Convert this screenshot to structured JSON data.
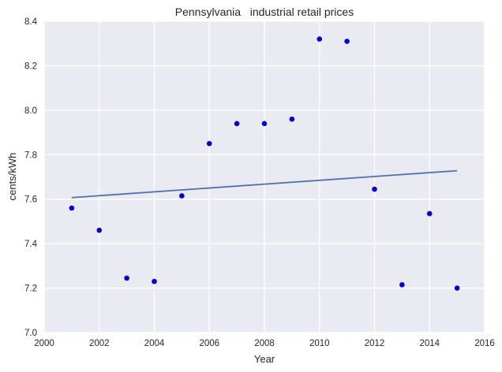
{
  "chart_data": {
    "type": "scatter",
    "title": "Pennsylvania   industrial retail prices",
    "xlabel": "Year",
    "ylabel": "cents/kWh",
    "xlim": [
      2000,
      2016
    ],
    "ylim": [
      7.0,
      8.4
    ],
    "xticks": [
      2000,
      2002,
      2004,
      2006,
      2008,
      2010,
      2012,
      2014,
      2016
    ],
    "yticks": [
      7.0,
      7.2,
      7.4,
      7.6,
      7.8,
      8.0,
      8.2,
      8.4
    ],
    "grid": true,
    "series": [
      {
        "type": "scatter",
        "color": "#0000cc",
        "x": [
          2001,
          2002,
          2003,
          2004,
          2005,
          2006,
          2007,
          2008,
          2009,
          2010,
          2011,
          2012,
          2013,
          2014,
          2015
        ],
        "y": [
          7.56,
          7.46,
          7.245,
          7.23,
          7.615,
          7.85,
          7.94,
          7.94,
          7.96,
          8.32,
          8.31,
          7.645,
          7.215,
          7.535,
          7.2
        ]
      },
      {
        "type": "line",
        "color": "#4c72b0",
        "x": [
          2001,
          2015
        ],
        "y": [
          7.607,
          7.728
        ]
      }
    ]
  }
}
